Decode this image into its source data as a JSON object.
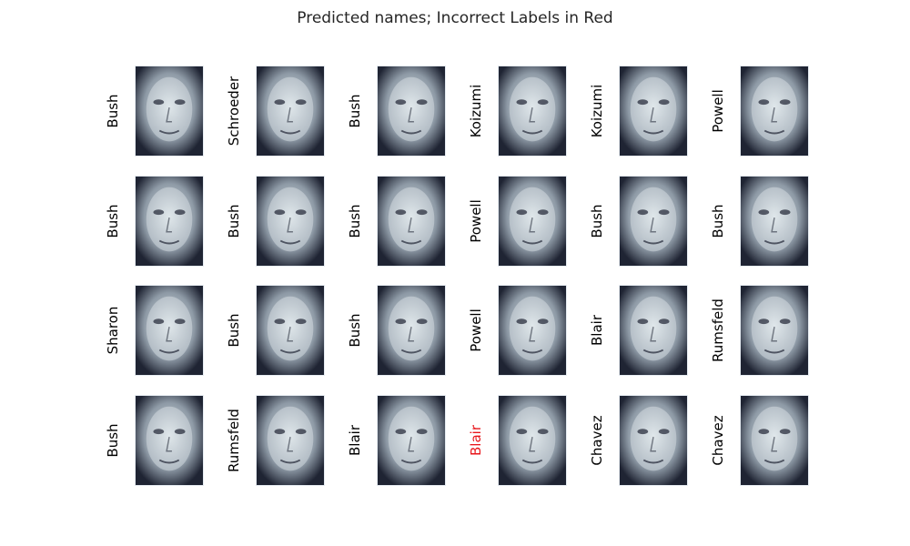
{
  "title": "Predicted names; Incorrect Labels in Red",
  "colors": {
    "correct_label": "#000000",
    "incorrect_label": "#e8161b",
    "face_light": "#dfe7ea",
    "face_mid": "#8e9aa6",
    "face_dark": "#1f2433"
  },
  "faces": [
    {
      "label": "Bush",
      "correct": true,
      "icon": "face-photo"
    },
    {
      "label": "Schroeder",
      "correct": true,
      "icon": "face-photo"
    },
    {
      "label": "Bush",
      "correct": true,
      "icon": "face-photo"
    },
    {
      "label": "Koizumi",
      "correct": true,
      "icon": "face-photo"
    },
    {
      "label": "Koizumi",
      "correct": true,
      "icon": "face-photo"
    },
    {
      "label": "Powell",
      "correct": true,
      "icon": "face-photo"
    },
    {
      "label": "Bush",
      "correct": true,
      "icon": "face-photo"
    },
    {
      "label": "Bush",
      "correct": true,
      "icon": "face-photo"
    },
    {
      "label": "Bush",
      "correct": true,
      "icon": "face-photo"
    },
    {
      "label": "Powell",
      "correct": true,
      "icon": "face-photo"
    },
    {
      "label": "Bush",
      "correct": true,
      "icon": "face-photo"
    },
    {
      "label": "Bush",
      "correct": true,
      "icon": "face-photo"
    },
    {
      "label": "Sharon",
      "correct": true,
      "icon": "face-photo"
    },
    {
      "label": "Bush",
      "correct": true,
      "icon": "face-photo"
    },
    {
      "label": "Bush",
      "correct": true,
      "icon": "face-photo"
    },
    {
      "label": "Powell",
      "correct": true,
      "icon": "face-photo"
    },
    {
      "label": "Blair",
      "correct": true,
      "icon": "face-photo"
    },
    {
      "label": "Rumsfeld",
      "correct": true,
      "icon": "face-photo"
    },
    {
      "label": "Bush",
      "correct": true,
      "icon": "face-photo"
    },
    {
      "label": "Rumsfeld",
      "correct": true,
      "icon": "face-photo"
    },
    {
      "label": "Blair",
      "correct": true,
      "icon": "face-photo"
    },
    {
      "label": "Blair",
      "correct": false,
      "icon": "face-photo"
    },
    {
      "label": "Chavez",
      "correct": true,
      "icon": "face-photo"
    },
    {
      "label": "Chavez",
      "correct": true,
      "icon": "face-photo"
    }
  ]
}
